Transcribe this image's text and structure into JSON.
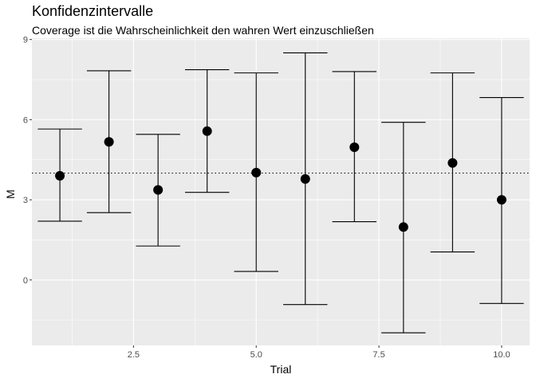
{
  "chart_data": {
    "type": "errorbar",
    "title": "Konfidenzintervalle",
    "subtitle": "Coverage ist die Wahrscheinlichkeit den wahren Wert einzuschließen",
    "xlabel": "Trial",
    "ylabel": "M",
    "xlim": [
      0.43,
      10.57
    ],
    "ylim": [
      -2.45,
      9.05
    ],
    "x_ticks": [
      2.5,
      5.0,
      7.5,
      10.0
    ],
    "x_tick_labels": [
      "2.5",
      "5.0",
      "7.5",
      "10.0"
    ],
    "y_ticks": [
      0,
      3,
      6,
      9
    ],
    "y_tick_labels": [
      "0",
      "3",
      "6",
      "9"
    ],
    "reference_line": {
      "y": 4.0,
      "style": "dotted"
    },
    "grid": true,
    "panel_background": "#ebebeb",
    "points": [
      {
        "x": 1,
        "mean": 3.9,
        "lower": 2.2,
        "upper": 5.65
      },
      {
        "x": 2,
        "mean": 5.17,
        "lower": 2.52,
        "upper": 7.83
      },
      {
        "x": 3,
        "mean": 3.37,
        "lower": 1.27,
        "upper": 5.45
      },
      {
        "x": 4,
        "mean": 5.57,
        "lower": 3.28,
        "upper": 7.87
      },
      {
        "x": 5,
        "mean": 4.02,
        "lower": 0.32,
        "upper": 7.75
      },
      {
        "x": 6,
        "mean": 3.78,
        "lower": -0.92,
        "upper": 8.5
      },
      {
        "x": 7,
        "mean": 4.97,
        "lower": 2.18,
        "upper": 7.8
      },
      {
        "x": 8,
        "mean": 1.98,
        "lower": -1.98,
        "upper": 5.9
      },
      {
        "x": 9,
        "mean": 4.38,
        "lower": 1.05,
        "upper": 7.75
      },
      {
        "x": 10,
        "mean": 3.0,
        "lower": -0.88,
        "upper": 6.83
      }
    ]
  }
}
